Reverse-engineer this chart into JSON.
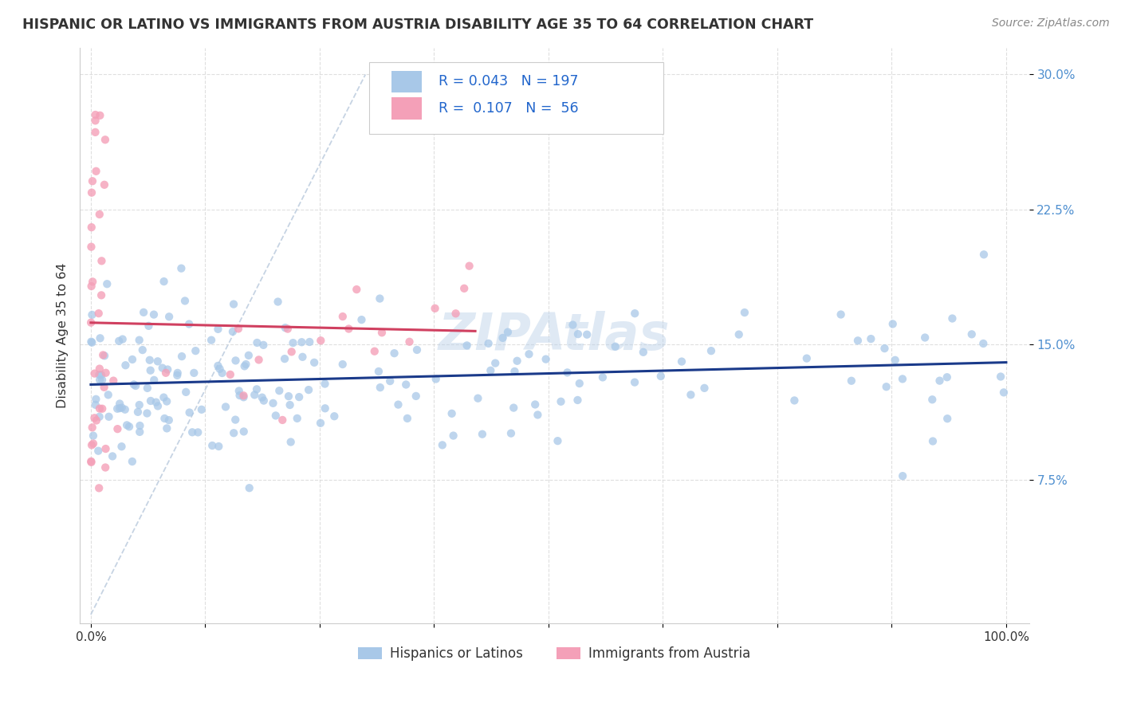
{
  "title": "HISPANIC OR LATINO VS IMMIGRANTS FROM AUSTRIA DISABILITY AGE 35 TO 64 CORRELATION CHART",
  "source": "Source: ZipAtlas.com",
  "ylabel": "Disability Age 35 to 64",
  "blue_R": "0.043",
  "blue_N": "197",
  "pink_R": "0.107",
  "pink_N": "56",
  "blue_color": "#a8c8e8",
  "pink_color": "#f4a0b8",
  "blue_line_color": "#1a3a8a",
  "pink_line_color": "#d04060",
  "diagonal_color": "#c0cfe0",
  "legend_label_blue": "Hispanics or Latinos",
  "legend_label_pink": "Immigrants from Austria",
  "watermark": "ZIPAtlas",
  "title_color": "#333333",
  "source_color": "#888888",
  "ylabel_color": "#333333",
  "ytick_color": "#5090d0",
  "xtick_color": "#333333",
  "grid_color": "#d8d8d8",
  "legend_text_color": "#1a3a8a",
  "legend_rn_color": "#2266cc"
}
